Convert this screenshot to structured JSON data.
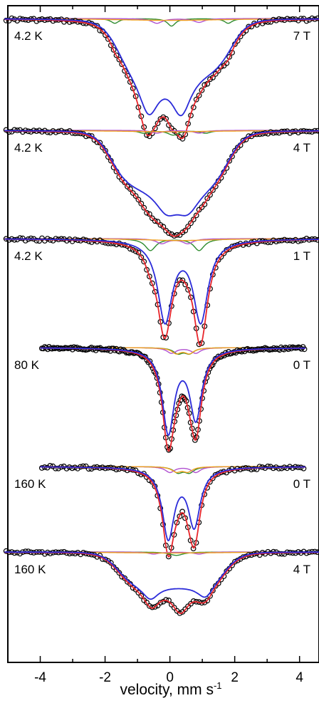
{
  "chart_data": {
    "type": "scatter",
    "title": "",
    "xlabel": "velocity, mm s",
    "xlabel_superscript": "-1",
    "ylabel": "",
    "xlim": [
      -5,
      4.6
    ],
    "xticks": [
      -4,
      -2,
      0,
      2,
      4
    ],
    "xtick_labels": [
      "-4",
      "-2",
      "0",
      "2",
      "4"
    ],
    "grid": false,
    "legend": "none",
    "series_colors": {
      "data": "#000000",
      "fit_total": "#e8252b",
      "main_component": "#2b2bd9",
      "minor_green": "#2e8b2e",
      "minor_purple": "#b050d0",
      "minor_orange": "#f0a020"
    },
    "panels": [
      {
        "temperature": "4.2 K",
        "field": "7 T",
        "depth": 1.0,
        "main_lines": [
          {
            "pos": -0.65,
            "w": 0.75,
            "a": 0.43
          },
          {
            "pos": 0.35,
            "w": 0.75,
            "a": 0.43
          }
        ],
        "main_plateau": {
          "start": -1.6,
          "end": 1.9,
          "a": 0.55
        },
        "data_lines": [
          {
            "pos": -0.75,
            "w": 0.55,
            "a": 0.3
          },
          {
            "pos": 0.0,
            "w": 0.55,
            "a": 0.15
          },
          {
            "pos": 0.45,
            "w": 0.5,
            "a": 0.3
          }
        ],
        "minor": [
          {
            "color": "minor_green",
            "lines": [
              {
                "pos": -1.7,
                "w": 0.3,
                "a": 0.05
              },
              {
                "pos": 0.05,
                "w": 0.3,
                "a": 0.08
              },
              {
                "pos": 1.8,
                "w": 0.3,
                "a": 0.05
              }
            ]
          },
          {
            "color": "minor_purple",
            "lines": [
              {
                "pos": -0.4,
                "w": 0.4,
                "a": 0.05
              },
              {
                "pos": 0.9,
                "w": 0.4,
                "a": 0.04
              }
            ]
          },
          {
            "color": "minor_orange",
            "lines": [
              {
                "pos": 0.0,
                "w": 4.0,
                "a": 0.02
              }
            ]
          }
        ]
      },
      {
        "temperature": "4.2 K",
        "field": "4 T",
        "depth": 1.0,
        "main_lines": [
          {
            "pos": -0.1,
            "w": 0.9,
            "a": 0.25
          },
          {
            "pos": 0.55,
            "w": 0.9,
            "a": 0.25
          }
        ],
        "main_plateau": {
          "start": -1.8,
          "end": 1.8,
          "a": 0.6
        },
        "data_lines": [
          {
            "pos": -0.6,
            "w": 0.7,
            "a": 0.22
          },
          {
            "pos": 0.25,
            "w": 0.7,
            "a": 0.25
          }
        ],
        "minor": [
          {
            "color": "minor_green",
            "lines": [
              {
                "pos": -0.8,
                "w": 0.4,
                "a": 0.03
              },
              {
                "pos": 0.1,
                "w": 0.4,
                "a": 0.05
              },
              {
                "pos": 1.1,
                "w": 0.4,
                "a": 0.03
              }
            ]
          },
          {
            "color": "minor_purple",
            "lines": [
              {
                "pos": -0.4,
                "w": 0.4,
                "a": 0.03
              },
              {
                "pos": 0.9,
                "w": 0.4,
                "a": 0.03
              }
            ]
          },
          {
            "color": "minor_orange",
            "lines": [
              {
                "pos": 0.0,
                "w": 4.0,
                "a": 0.015
              }
            ]
          }
        ]
      },
      {
        "temperature": "4.2 K",
        "field": "1 T",
        "depth": 1.0,
        "main_lines": [
          {
            "pos": -0.15,
            "w": 0.55,
            "a": 0.82
          },
          {
            "pos": 0.95,
            "w": 0.55,
            "a": 0.82
          }
        ],
        "main_plateau": null,
        "data_lines": [
          {
            "pos": -0.2,
            "w": 0.5,
            "a": 0.1
          },
          {
            "pos": 0.95,
            "w": 0.5,
            "a": 0.12
          }
        ],
        "minor": [
          {
            "color": "minor_green",
            "lines": [
              {
                "pos": -0.6,
                "w": 0.4,
                "a": 0.12
              },
              {
                "pos": 0.9,
                "w": 0.4,
                "a": 0.12
              }
            ]
          },
          {
            "color": "minor_purple",
            "lines": [
              {
                "pos": -0.25,
                "w": 0.4,
                "a": 0.05
              },
              {
                "pos": 0.55,
                "w": 0.4,
                "a": 0.05
              }
            ]
          },
          {
            "color": "minor_orange",
            "lines": [
              {
                "pos": 0.3,
                "w": 2.5,
                "a": 0.02
              }
            ]
          }
        ]
      },
      {
        "temperature": "80 K",
        "field": "0 T",
        "depth": 1.1,
        "main_lines": [
          {
            "pos": -0.05,
            "w": 0.45,
            "a": 0.9
          },
          {
            "pos": 0.8,
            "w": 0.45,
            "a": 0.75
          }
        ],
        "main_plateau": null,
        "data_lines": [
          {
            "pos": -0.05,
            "w": 0.45,
            "a": 0.12
          },
          {
            "pos": 0.8,
            "w": 0.45,
            "a": 0.1
          }
        ],
        "minor": [
          {
            "color": "minor_green",
            "lines": [
              {
                "pos": 0.25,
                "w": 0.35,
                "a": 0.06
              },
              {
                "pos": 0.6,
                "w": 0.35,
                "a": 0.06
              }
            ]
          },
          {
            "color": "minor_purple",
            "lines": [
              {
                "pos": 0.05,
                "w": 0.35,
                "a": 0.06
              },
              {
                "pos": 0.8,
                "w": 0.35,
                "a": 0.06
              }
            ]
          },
          {
            "color": "minor_orange",
            "lines": [
              {
                "pos": 0.2,
                "w": 0.35,
                "a": 0.06
              },
              {
                "pos": 0.6,
                "w": 0.35,
                "a": 0.06
              }
            ]
          }
        ]
      },
      {
        "temperature": "160 K",
        "field": "0 T",
        "depth": 1.1,
        "main_lines": [
          {
            "pos": -0.05,
            "w": 0.45,
            "a": 0.85
          },
          {
            "pos": 0.75,
            "w": 0.45,
            "a": 0.7
          }
        ],
        "main_plateau": null,
        "data_lines": [
          {
            "pos": -0.05,
            "w": 0.45,
            "a": 0.12
          },
          {
            "pos": 0.75,
            "w": 0.45,
            "a": 0.12
          }
        ],
        "minor": [
          {
            "color": "minor_green",
            "lines": [
              {
                "pos": 0.25,
                "w": 0.35,
                "a": 0.07
              },
              {
                "pos": 0.6,
                "w": 0.35,
                "a": 0.07
              }
            ]
          },
          {
            "color": "minor_purple",
            "lines": [
              {
                "pos": 0.0,
                "w": 0.35,
                "a": 0.07
              },
              {
                "pos": 0.8,
                "w": 0.35,
                "a": 0.07
              }
            ]
          },
          {
            "color": "minor_orange",
            "lines": [
              {
                "pos": 0.2,
                "w": 0.35,
                "a": 0.06
              },
              {
                "pos": 0.55,
                "w": 0.35,
                "a": 0.06
              }
            ]
          }
        ]
      },
      {
        "temperature": "160 K",
        "field": "4 T",
        "depth": 1.0,
        "main_lines": [
          {
            "pos": -0.6,
            "w": 0.6,
            "a": 0.2
          },
          {
            "pos": 1.1,
            "w": 0.6,
            "a": 0.2
          }
        ],
        "main_plateau": {
          "start": -1.6,
          "end": 1.7,
          "a": 0.5
        },
        "data_lines": [
          {
            "pos": 0.35,
            "w": 0.6,
            "a": 0.5
          },
          {
            "pos": -0.5,
            "w": 0.6,
            "a": 0.1
          }
        ],
        "minor": [
          {
            "color": "minor_green",
            "lines": [
              {
                "pos": 0.2,
                "w": 0.5,
                "a": 0.05
              }
            ]
          },
          {
            "color": "minor_purple",
            "lines": [
              {
                "pos": -0.5,
                "w": 0.4,
                "a": 0.03
              },
              {
                "pos": 0.9,
                "w": 0.4,
                "a": 0.03
              }
            ]
          },
          {
            "color": "minor_orange",
            "lines": [
              {
                "pos": 0.0,
                "w": 4.0,
                "a": 0.015
              }
            ]
          }
        ]
      }
    ]
  }
}
